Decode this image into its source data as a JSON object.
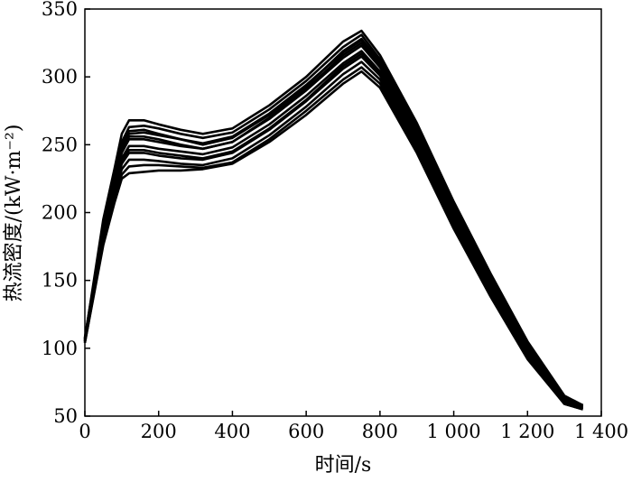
{
  "chart_data": {
    "type": "line",
    "title": "",
    "xlabel": "时间/s",
    "ylabel": "热流密度/(kW·m⁻²)",
    "xlim": [
      0,
      1400
    ],
    "ylim": [
      50,
      350
    ],
    "x_ticks": [
      0,
      200,
      400,
      600,
      800,
      1000,
      1200,
      1400
    ],
    "x_tick_labels": [
      "0",
      "200",
      "400",
      "600",
      "800",
      "1 000",
      "1 200",
      "1 400"
    ],
    "y_ticks": [
      50,
      100,
      150,
      200,
      250,
      300,
      350
    ],
    "y_tick_labels": [
      "50",
      "100",
      "150",
      "200",
      "250",
      "300",
      "350"
    ],
    "grid": false,
    "legend": "none",
    "line_color": "#000000",
    "series": [
      {
        "x": [
          0,
          50,
          80,
          100,
          120,
          160,
          200,
          260,
          320,
          400,
          500,
          600,
          700,
          750,
          800,
          900,
          1000,
          1100,
          1200,
          1300,
          1350
        ],
        "y": [
          107,
          195,
          232,
          258,
          268,
          268,
          265,
          261,
          258,
          262,
          279,
          300,
          326,
          334,
          316,
          266,
          208,
          155,
          105,
          65,
          58
        ]
      },
      {
        "x": [
          0,
          50,
          80,
          100,
          120,
          160,
          200,
          260,
          320,
          400,
          500,
          600,
          700,
          750,
          800,
          900,
          1000,
          1100,
          1200,
          1300,
          1350
        ],
        "y": [
          108,
          190,
          228,
          252,
          263,
          264,
          262,
          258,
          255,
          259,
          276,
          297,
          322,
          331,
          313,
          263,
          205,
          152,
          103,
          64,
          58
        ]
      },
      {
        "x": [
          0,
          50,
          80,
          100,
          120,
          160,
          200,
          260,
          320,
          400,
          500,
          600,
          700,
          750,
          800,
          900,
          1000,
          1100,
          1200,
          1300,
          1350
        ],
        "y": [
          107,
          188,
          225,
          248,
          258,
          259,
          257,
          254,
          251,
          256,
          273,
          294,
          318,
          327,
          310,
          260,
          202,
          150,
          101,
          63,
          57
        ]
      },
      {
        "x": [
          0,
          50,
          80,
          100,
          120,
          160,
          200,
          260,
          320,
          400,
          500,
          600,
          700,
          750,
          800,
          900,
          1000,
          1100,
          1200,
          1300,
          1350
        ],
        "y": [
          106,
          186,
          222,
          244,
          254,
          254,
          252,
          249,
          247,
          252,
          269,
          290,
          314,
          323,
          307,
          257,
          199,
          147,
          99,
          62,
          57
        ]
      },
      {
        "x": [
          0,
          50,
          80,
          100,
          120,
          160,
          200,
          260,
          320,
          400,
          500,
          600,
          700,
          750,
          800,
          900,
          1000,
          1100,
          1200,
          1300,
          1350
        ],
        "y": [
          106,
          184,
          219,
          240,
          249,
          249,
          247,
          245,
          243,
          248,
          265,
          286,
          310,
          319,
          304,
          254,
          197,
          145,
          97,
          61,
          56
        ]
      },
      {
        "x": [
          0,
          50,
          80,
          100,
          120,
          160,
          200,
          260,
          320,
          400,
          500,
          600,
          700,
          750,
          800,
          900,
          1000,
          1100,
          1200,
          1300,
          1350
        ],
        "y": [
          105,
          182,
          216,
          236,
          244,
          244,
          242,
          240,
          239,
          244,
          261,
          282,
          306,
          315,
          301,
          251,
          194,
          143,
          96,
          60,
          56
        ]
      },
      {
        "x": [
          0,
          50,
          80,
          100,
          120,
          160,
          200,
          260,
          320,
          400,
          500,
          600,
          700,
          750,
          800,
          900,
          1000,
          1100,
          1200,
          1300,
          1350
        ],
        "y": [
          105,
          180,
          213,
          232,
          239,
          239,
          238,
          236,
          235,
          240,
          257,
          278,
          302,
          311,
          298,
          248,
          192,
          141,
          94,
          60,
          56
        ]
      },
      {
        "x": [
          0,
          50,
          80,
          100,
          120,
          160,
          200,
          260,
          320,
          400,
          500,
          600,
          700,
          750,
          800,
          900,
          1000,
          1100,
          1200,
          1300,
          1350
        ],
        "y": [
          104,
          178,
          210,
          228,
          234,
          235,
          235,
          234,
          233,
          237,
          254,
          275,
          298,
          307,
          295,
          246,
          190,
          139,
          93,
          59,
          55
        ]
      },
      {
        "x": [
          0,
          50,
          80,
          100,
          120,
          160,
          200,
          260,
          320,
          400,
          500,
          600,
          700,
          750,
          800,
          900,
          1000,
          1100,
          1200,
          1300,
          1350
        ],
        "y": [
          104,
          176,
          207,
          225,
          229,
          230,
          231,
          231,
          232,
          236,
          252,
          272,
          295,
          304,
          292,
          244,
          188,
          138,
          92,
          59,
          55
        ]
      },
      {
        "x": [
          0,
          50,
          80,
          100,
          120,
          160,
          200,
          260,
          320,
          400,
          500,
          600,
          700,
          750,
          800,
          900,
          1000,
          1100,
          1200,
          1300,
          1350
        ],
        "y": [
          106,
          186,
          223,
          245,
          256,
          256,
          254,
          250,
          247,
          252,
          270,
          291,
          316,
          325,
          308,
          258,
          200,
          148,
          100,
          62,
          57
        ]
      },
      {
        "x": [
          0,
          50,
          80,
          100,
          120,
          160,
          200,
          260,
          320,
          400,
          500,
          600,
          700,
          750,
          800,
          900,
          1000,
          1100,
          1200,
          1300,
          1350
        ],
        "y": [
          107,
          189,
          226,
          249,
          260,
          261,
          258,
          254,
          250,
          255,
          272,
          293,
          319,
          328,
          311,
          261,
          203,
          150,
          102,
          63,
          58
        ]
      },
      {
        "x": [
          0,
          50,
          80,
          100,
          120,
          160,
          200,
          260,
          320,
          400,
          500,
          600,
          700,
          750,
          800,
          900,
          1000,
          1100,
          1200,
          1300,
          1350
        ],
        "y": [
          105,
          183,
          218,
          238,
          246,
          246,
          244,
          242,
          240,
          245,
          262,
          283,
          308,
          317,
          302,
          252,
          196,
          144,
          97,
          61,
          56
        ]
      }
    ]
  }
}
